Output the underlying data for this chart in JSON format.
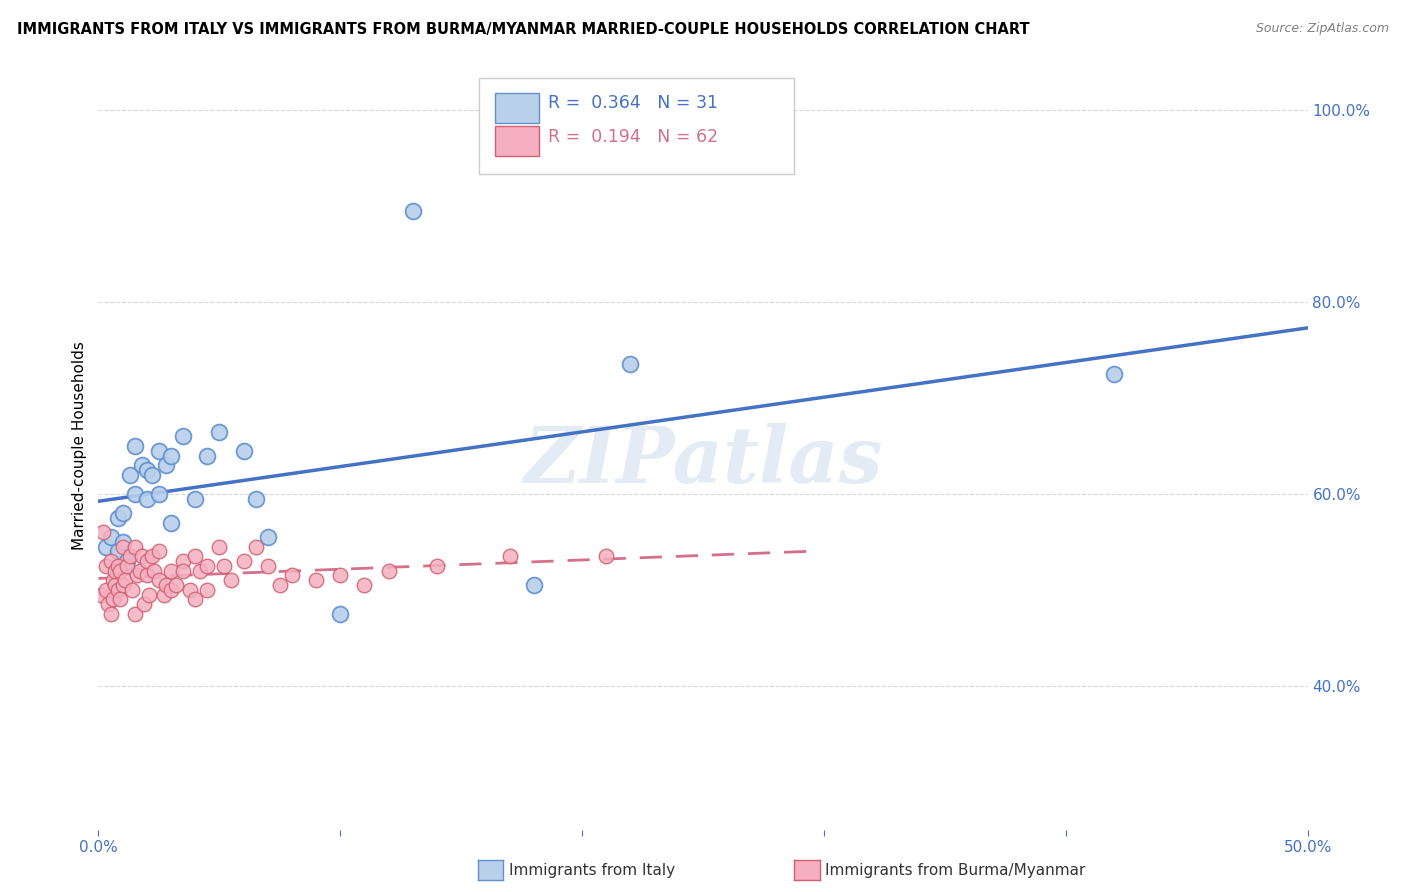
{
  "title": "IMMIGRANTS FROM ITALY VS IMMIGRANTS FROM BURMA/MYANMAR MARRIED-COUPLE HOUSEHOLDS CORRELATION CHART",
  "source": "Source: ZipAtlas.com",
  "xlabel_italy": "Immigrants from Italy",
  "xlabel_burma": "Immigrants from Burma/Myanmar",
  "ylabel": "Married-couple Households",
  "xlim": [
    0.0,
    0.5
  ],
  "ylim": [
    0.25,
    1.05
  ],
  "R_italy": 0.364,
  "N_italy": 31,
  "R_burma": 0.194,
  "N_burma": 62,
  "color_italy": "#b8d0ea",
  "color_burma": "#f5afc0",
  "edge_italy": "#6090d0",
  "edge_burma": "#d06070",
  "line_color_italy": "#4472c4",
  "line_color_burma": "#d4708a",
  "watermark": "ZIPatlas",
  "italy_x": [
    0.003,
    0.005,
    0.008,
    0.008,
    0.01,
    0.01,
    0.012,
    0.013,
    0.015,
    0.015,
    0.018,
    0.02,
    0.02,
    0.022,
    0.025,
    0.025,
    0.028,
    0.03,
    0.03,
    0.035,
    0.04,
    0.045,
    0.05,
    0.06,
    0.065,
    0.07,
    0.1,
    0.13,
    0.18,
    0.22,
    0.42
  ],
  "italy_y": [
    0.545,
    0.555,
    0.54,
    0.575,
    0.55,
    0.58,
    0.53,
    0.62,
    0.6,
    0.65,
    0.63,
    0.595,
    0.625,
    0.62,
    0.6,
    0.645,
    0.63,
    0.57,
    0.64,
    0.66,
    0.595,
    0.64,
    0.665,
    0.645,
    0.595,
    0.555,
    0.475,
    0.895,
    0.505,
    0.735,
    0.725
  ],
  "burma_x": [
    0.001,
    0.002,
    0.003,
    0.003,
    0.004,
    0.005,
    0.005,
    0.006,
    0.006,
    0.007,
    0.007,
    0.008,
    0.008,
    0.009,
    0.009,
    0.01,
    0.01,
    0.011,
    0.012,
    0.013,
    0.014,
    0.015,
    0.015,
    0.016,
    0.017,
    0.018,
    0.019,
    0.02,
    0.02,
    0.021,
    0.022,
    0.023,
    0.025,
    0.025,
    0.027,
    0.028,
    0.03,
    0.03,
    0.032,
    0.035,
    0.035,
    0.038,
    0.04,
    0.04,
    0.042,
    0.045,
    0.045,
    0.05,
    0.052,
    0.055,
    0.06,
    0.065,
    0.07,
    0.075,
    0.08,
    0.09,
    0.1,
    0.11,
    0.12,
    0.14,
    0.17,
    0.21
  ],
  "burma_y": [
    0.495,
    0.56,
    0.525,
    0.5,
    0.485,
    0.53,
    0.475,
    0.51,
    0.49,
    0.505,
    0.52,
    0.5,
    0.525,
    0.49,
    0.52,
    0.505,
    0.545,
    0.51,
    0.525,
    0.535,
    0.5,
    0.545,
    0.475,
    0.515,
    0.52,
    0.535,
    0.485,
    0.515,
    0.53,
    0.495,
    0.535,
    0.52,
    0.51,
    0.54,
    0.495,
    0.505,
    0.5,
    0.52,
    0.505,
    0.53,
    0.52,
    0.5,
    0.535,
    0.49,
    0.52,
    0.5,
    0.525,
    0.545,
    0.525,
    0.51,
    0.53,
    0.545,
    0.525,
    0.505,
    0.515,
    0.51,
    0.515,
    0.505,
    0.52,
    0.525,
    0.535,
    0.535
  ],
  "grid_color": "#d8d8d8",
  "ytick_right_vals": [
    0.4,
    0.6,
    0.8,
    1.0
  ],
  "ytick_right_labels": [
    "40.0%",
    "60.0%",
    "80.0%",
    "100.0%"
  ]
}
